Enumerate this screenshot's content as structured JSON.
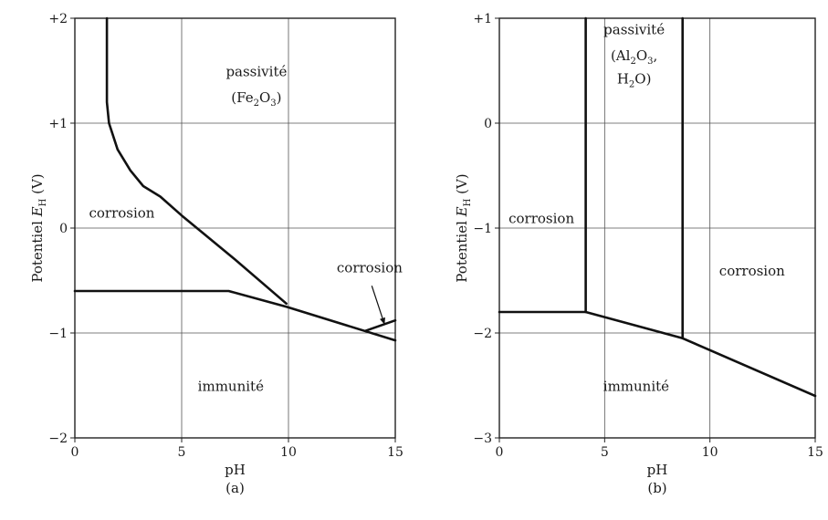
{
  "chart_data": [
    {
      "type": "line",
      "caption": "(a)",
      "xlabel": "pH",
      "ylabel_prefix": "Potentiel ",
      "ylabel_var": "E",
      "ylabel_sub": "H",
      "ylabel_unit": " (V)",
      "xlim": [
        0,
        15
      ],
      "ylim": [
        -2,
        2
      ],
      "x_ticks": [
        {
          "value": 0,
          "label": "0"
        },
        {
          "value": 5,
          "label": "5"
        },
        {
          "value": 10,
          "label": "10"
        },
        {
          "value": 15,
          "label": "15"
        }
      ],
      "y_ticks": [
        {
          "value": 2,
          "label": "+2"
        },
        {
          "value": 1,
          "label": "+1"
        },
        {
          "value": 0,
          "label": "0"
        },
        {
          "value": -1,
          "label": "−1"
        },
        {
          "value": -2,
          "label": "−2"
        }
      ],
      "grid": true,
      "series": [
        {
          "points": [
            [
              1.5,
              2.0
            ],
            [
              1.5,
              1.2
            ],
            [
              1.6,
              1.0
            ],
            [
              2.0,
              0.75
            ],
            [
              2.6,
              0.55
            ],
            [
              3.2,
              0.4
            ],
            [
              4.0,
              0.3
            ],
            [
              5.0,
              0.12
            ],
            [
              7.5,
              -0.3
            ],
            [
              9.9,
              -0.72
            ]
          ]
        },
        {
          "points": [
            [
              0,
              -0.6
            ],
            [
              7.2,
              -0.6
            ],
            [
              9.9,
              -0.75
            ],
            [
              15,
              -1.07
            ]
          ]
        },
        {
          "points": [
            [
              13.6,
              -0.98
            ],
            [
              15,
              -0.88
            ]
          ]
        }
      ],
      "region_labels": [
        {
          "text": "passivité",
          "x": 8.5,
          "y": 1.45
        },
        {
          "text_main": "(Fe",
          "sub1": "2",
          "mid": "O",
          "sub2": "3",
          "end": ")",
          "x": 8.5,
          "y": 1.2
        },
        {
          "text": "corrosion",
          "x": 2.2,
          "y": 0.1
        },
        {
          "text": "corrosion",
          "x": 13.8,
          "y": -0.42
        },
        {
          "text": "immunité",
          "x": 7.3,
          "y": -1.55
        }
      ],
      "arrow": {
        "from": [
          13.9,
          -0.55
        ],
        "to": [
          14.5,
          -0.92
        ]
      }
    },
    {
      "type": "line",
      "caption": "(b)",
      "xlabel": "pH",
      "ylabel_prefix": "Potentiel ",
      "ylabel_var": "E",
      "ylabel_sub": "H",
      "ylabel_unit": " (V)",
      "xlim": [
        0,
        15
      ],
      "ylim": [
        -3,
        1
      ],
      "x_ticks": [
        {
          "value": 0,
          "label": "0"
        },
        {
          "value": 5,
          "label": "5"
        },
        {
          "value": 10,
          "label": "10"
        },
        {
          "value": 15,
          "label": "15"
        }
      ],
      "y_ticks": [
        {
          "value": 1,
          "label": "+1"
        },
        {
          "value": 0,
          "label": "0"
        },
        {
          "value": -1,
          "label": "−1"
        },
        {
          "value": -2,
          "label": "−2"
        },
        {
          "value": -3,
          "label": "−3"
        }
      ],
      "grid": true,
      "series": [
        {
          "points": [
            [
              0,
              -1.8
            ],
            [
              4.1,
              -1.8
            ],
            [
              8.7,
              -2.05
            ],
            [
              15,
              -2.6
            ]
          ]
        },
        {
          "points": [
            [
              4.1,
              -1.8
            ],
            [
              4.1,
              1.0
            ]
          ]
        },
        {
          "points": [
            [
              8.7,
              -2.05
            ],
            [
              8.7,
              1.0
            ]
          ]
        }
      ],
      "region_labels": [
        {
          "text": "passivité",
          "x": 6.4,
          "y": 0.85
        },
        {
          "text_main": "(Al",
          "sub1": "2",
          "mid": "O",
          "sub2": "3",
          "end": ",",
          "x": 6.4,
          "y": 0.6
        },
        {
          "text_main": "H",
          "sub1": "2",
          "mid": "O)",
          "sub2": "",
          "end": "",
          "x": 6.4,
          "y": 0.38
        },
        {
          "text": "corrosion",
          "x": 2.0,
          "y": -0.95
        },
        {
          "text": "corrosion",
          "x": 12.0,
          "y": -1.45
        },
        {
          "text": "immunité",
          "x": 6.5,
          "y": -2.55
        }
      ]
    }
  ]
}
